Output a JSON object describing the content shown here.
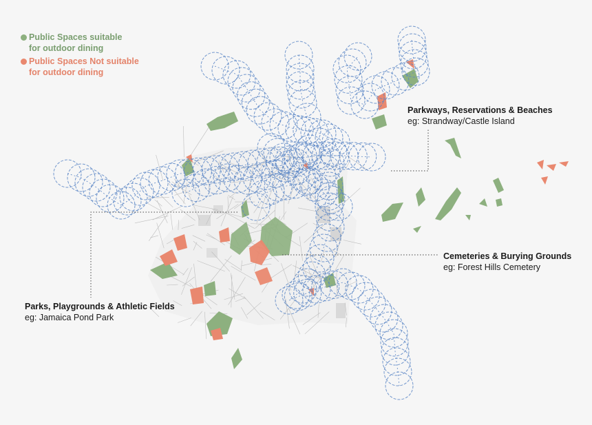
{
  "legend": {
    "suitable": {
      "line1": "Public Spaces suitable",
      "line2": "for outdoor dining",
      "color": "#8db07f"
    },
    "not_suitable": {
      "line1": "Public Spaces Not suitable",
      "line2": "for outdoor dining",
      "color": "#e9886f"
    }
  },
  "callouts": {
    "parkways": {
      "title": "Parkways, Reservations & Beaches",
      "example": "eg: Strandway/Castle Island"
    },
    "cemeteries": {
      "title": "Cemeteries & Burying Grounds",
      "example": "eg: Forest Hills Cemetery"
    },
    "parks": {
      "title": "Parks, Playgrounds & Athletic Fields",
      "example": "eg: Jamaica Pond Park"
    }
  },
  "colors": {
    "circle_stroke": "#5b86c5",
    "leader_line": "#444444",
    "roads": "#bdbdbd",
    "blocks": "#e2e2e2"
  }
}
